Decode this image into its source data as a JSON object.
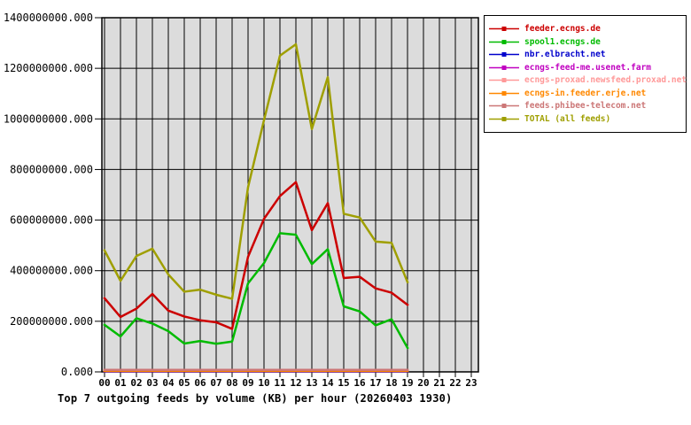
{
  "chart_data": {
    "type": "line",
    "title": "Top 7 outgoing feeds by volume (KB) per hour (20260403 1930)",
    "xlabel": "",
    "ylabel": "",
    "ylim": [
      0,
      1400000000
    ],
    "ytick_step": 200000000,
    "ytick_labels": [
      "0.000",
      "200000000.000",
      "400000000.000",
      "600000000.000",
      "800000000.000",
      "1000000000.000",
      "1200000000.000",
      "1400000000.000"
    ],
    "xtick_labels": [
      "00",
      "01",
      "02",
      "03",
      "04",
      "05",
      "06",
      "07",
      "08",
      "09",
      "10",
      "11",
      "12",
      "13",
      "14",
      "15",
      "16",
      "17",
      "18",
      "19",
      "20",
      "21",
      "22",
      "23"
    ],
    "data_hours": [
      "00",
      "01",
      "02",
      "03",
      "04",
      "05",
      "06",
      "07",
      "08",
      "09",
      "10",
      "11",
      "12",
      "13",
      "14",
      "15",
      "16",
      "17",
      "18",
      "19"
    ],
    "grid": true,
    "plot_bg": "#dcdcdc",
    "grid_color": "#000000",
    "legend_position": "top-right",
    "series": [
      {
        "name": "feeder.ecngs.de",
        "color": "#cc0000",
        "values": [
          291000000,
          217000000,
          250000000,
          308000000,
          242000000,
          219000000,
          204000000,
          196000000,
          170000000,
          455000000,
          605000000,
          695000000,
          750000000,
          560000000,
          667000000,
          371000000,
          376000000,
          330000000,
          313000000,
          265000000
        ]
      },
      {
        "name": "spool1.ecngs.de",
        "color": "#00bb00",
        "values": [
          186000000,
          140000000,
          212000000,
          191000000,
          161000000,
          112000000,
          122000000,
          111000000,
          120000000,
          350000000,
          430000000,
          548000000,
          542000000,
          426000000,
          485000000,
          259000000,
          239000000,
          184000000,
          208000000,
          95000000
        ]
      },
      {
        "name": "nbr.elbracht.net",
        "color": "#0000cc",
        "values": [
          2000000,
          2000000,
          2000000,
          2000000,
          2000000,
          2000000,
          2000000,
          2000000,
          2000000,
          2000000,
          2000000,
          2000000,
          2000000,
          2000000,
          2000000,
          2000000,
          2000000,
          2000000,
          2000000,
          2000000
        ]
      },
      {
        "name": "ecngs-feed-me.usenet.farm",
        "color": "#c000c0",
        "values": [
          3000000,
          3000000,
          3000000,
          3000000,
          3000000,
          3000000,
          3000000,
          3000000,
          3000000,
          3000000,
          3000000,
          3000000,
          3000000,
          3000000,
          3000000,
          3000000,
          3000000,
          3000000,
          3000000,
          3000000
        ]
      },
      {
        "name": "ecngs-proxad.newsfeed.proxad.net",
        "color": "#ff9999",
        "values": [
          5000000,
          5000000,
          5000000,
          5000000,
          5000000,
          5000000,
          5000000,
          5000000,
          5000000,
          5000000,
          5000000,
          5000000,
          5000000,
          5000000,
          5000000,
          5000000,
          5000000,
          5000000,
          5000000,
          5000000
        ]
      },
      {
        "name": "ecngs-in.feeder.erje.net",
        "color": "#ff8800",
        "values": [
          4000000,
          4000000,
          4000000,
          4000000,
          4000000,
          4000000,
          4000000,
          4000000,
          4000000,
          4000000,
          4000000,
          4000000,
          4000000,
          4000000,
          4000000,
          4000000,
          4000000,
          4000000,
          4000000,
          4000000
        ]
      },
      {
        "name": "feeds.phibee-telecom.net",
        "color": "#cc7777",
        "values": [
          8000000,
          8000000,
          8000000,
          8000000,
          8000000,
          8000000,
          8000000,
          8000000,
          8000000,
          8000000,
          8000000,
          8000000,
          8000000,
          8000000,
          8000000,
          8000000,
          8000000,
          8000000,
          8000000,
          8000000
        ]
      },
      {
        "name": "TOTAL (all feeds)",
        "color": "#9f9f00",
        "values": [
          480000000,
          360000000,
          458000000,
          487000000,
          385000000,
          317000000,
          325000000,
          305000000,
          289000000,
          730000000,
          995000000,
          1250000000,
          1295000000,
          960000000,
          1165000000,
          625000000,
          610000000,
          515000000,
          510000000,
          355000000
        ]
      }
    ]
  }
}
